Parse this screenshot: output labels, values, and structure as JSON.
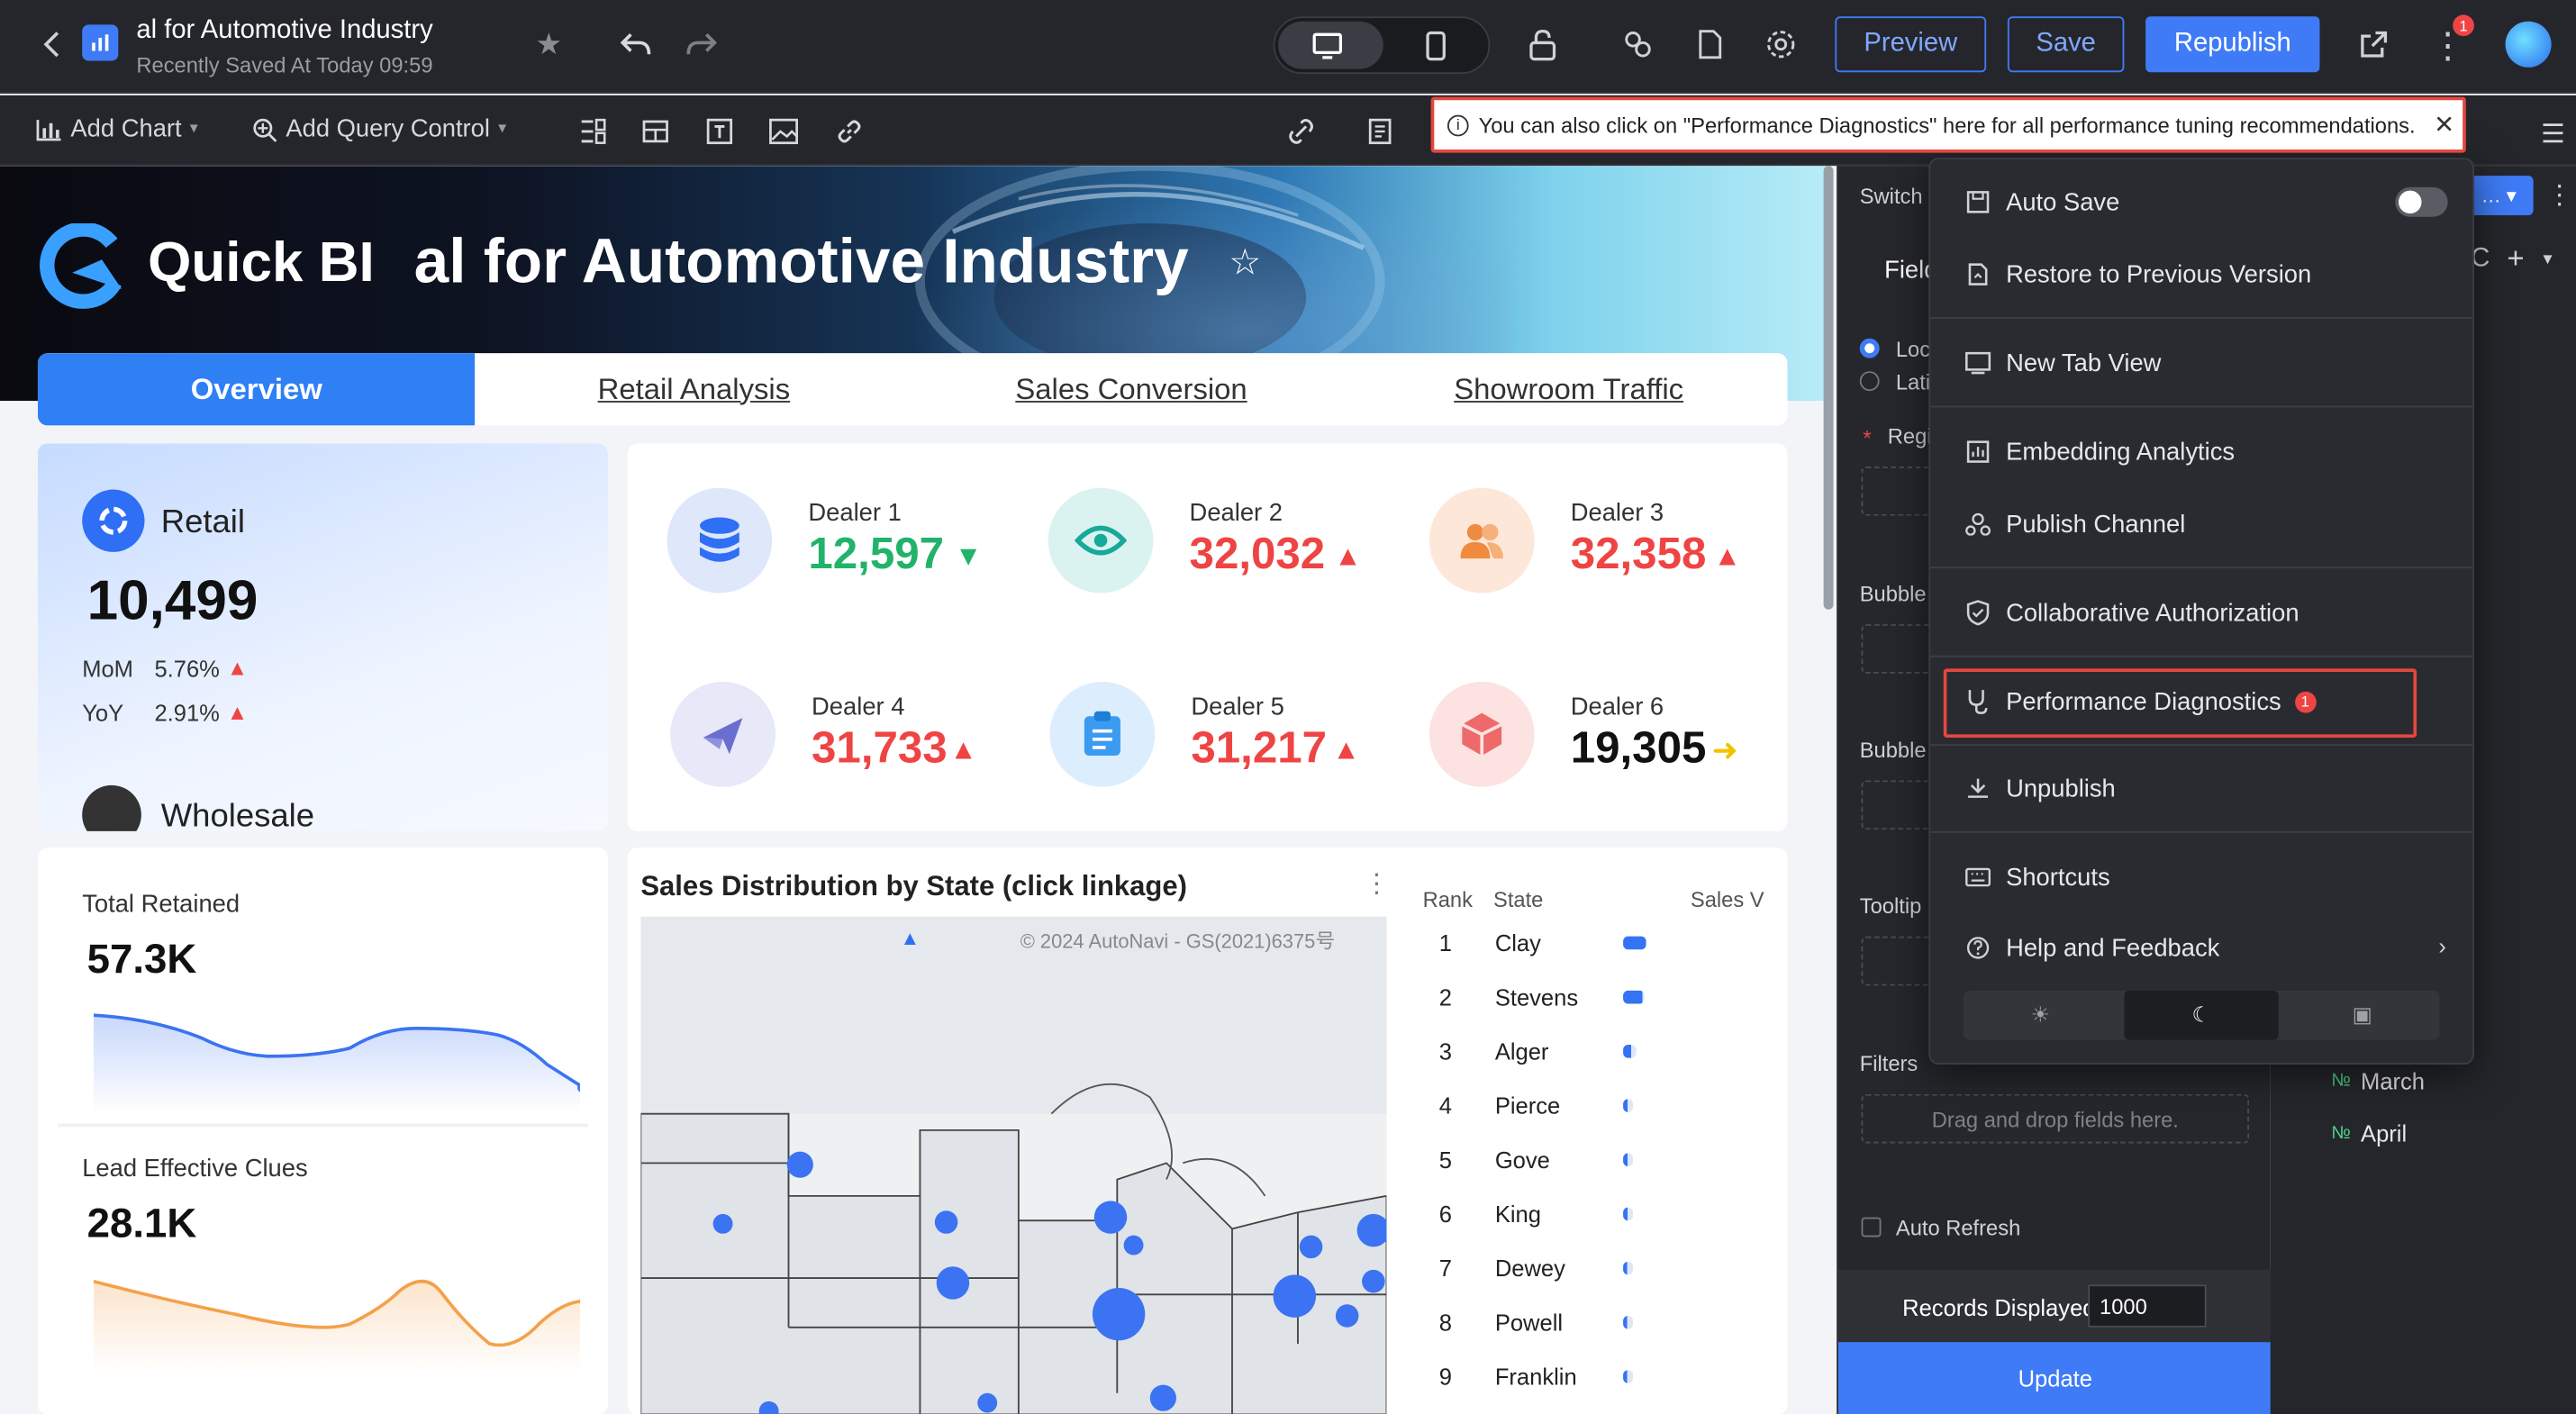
{
  "header": {
    "title": "al for Automotive Industry",
    "saved": "Recently Saved At Today 09:59",
    "preview": "Preview",
    "save": "Save",
    "republish": "Republish",
    "notif_count": "1"
  },
  "toolbar": {
    "add_chart": "Add Chart",
    "add_query": "Add Query Control"
  },
  "tip": {
    "text": "You can also click on \"Performance Diagnostics\" here for all performance tuning recommendations."
  },
  "banner": {
    "logo": "Quick BI",
    "title": "al for Automotive Industry"
  },
  "tabs": [
    "Overview",
    "Retail Analysis",
    "Sales Conversion",
    "Showroom Traffic"
  ],
  "retail": {
    "label": "Retail",
    "value": "10,499",
    "mom_label": "MoM",
    "mom": "5.76%",
    "yoy_label": "YoY",
    "yoy": "2.91%",
    "next_label": "Wholesale"
  },
  "dealers": [
    {
      "name": "Dealer 1",
      "value": "12,597",
      "trend": "down"
    },
    {
      "name": "Dealer 2",
      "value": "32,032",
      "trend": "up"
    },
    {
      "name": "Dealer 3",
      "value": "32,358",
      "trend": "up"
    },
    {
      "name": "Dealer 4",
      "value": "31,733",
      "trend": "up"
    },
    {
      "name": "Dealer 5",
      "value": "31,217",
      "trend": "up"
    },
    {
      "name": "Dealer 6",
      "value": "19,305",
      "trend": "flat"
    }
  ],
  "retained": {
    "label": "Total Retained",
    "value": "57.3K"
  },
  "clues": {
    "label": "Lead Effective Clues",
    "value": "28.1K"
  },
  "map": {
    "title": "Sales Distribution by State (click linkage)",
    "copyright": "© 2024 AutoNavi - GS(2021)6375号",
    "col_rank": "Rank",
    "col_state": "State",
    "col_sales": "Sales V"
  },
  "ranking": [
    {
      "rank": "1",
      "state": "Clay",
      "share": 1.0
    },
    {
      "rank": "2",
      "state": "Stevens",
      "share": 0.9
    },
    {
      "rank": "3",
      "state": "Alger",
      "share": 0.6
    },
    {
      "rank": "4",
      "state": "Pierce",
      "share": 0.45
    },
    {
      "rank": "5",
      "state": "Gove",
      "share": 0.45
    },
    {
      "rank": "6",
      "state": "King",
      "share": 0.45
    },
    {
      "rank": "7",
      "state": "Dewey",
      "share": 0.4
    },
    {
      "rank": "8",
      "state": "Powell",
      "share": 0.4
    },
    {
      "rank": "9",
      "state": "Franklin",
      "share": 0.4
    }
  ],
  "panel": {
    "switch": "Switch",
    "fields": "Field",
    "radio1": "Loc",
    "radio2": "Lati",
    "region": "Regi",
    "bubble1": "Bubble",
    "bubble2": "Bubble",
    "tooltip": "Tooltip",
    "filters": "Filters",
    "drop": "Drag and drop fields here.",
    "auto_refresh": "Auto Refresh",
    "records_label": "Records Displayed",
    "records_value": "1000",
    "update": "Update"
  },
  "far_right": {
    "items": [
      "March",
      "April"
    ]
  },
  "menu": {
    "auto_save": "Auto Save",
    "restore": "Restore to Previous Version",
    "new_tab": "New Tab View",
    "embedding": "Embedding Analytics",
    "publish_channel": "Publish Channel",
    "collab": "Collaborative Authorization",
    "perf": "Performance Diagnostics",
    "perf_badge": "1",
    "unpublish": "Unpublish",
    "shortcuts": "Shortcuts",
    "help": "Help and Feedback"
  },
  "colors": {
    "accent": "#3f7bf6",
    "up": "#ef4444",
    "down": "#22b36a",
    "flat": "#f2c200"
  }
}
